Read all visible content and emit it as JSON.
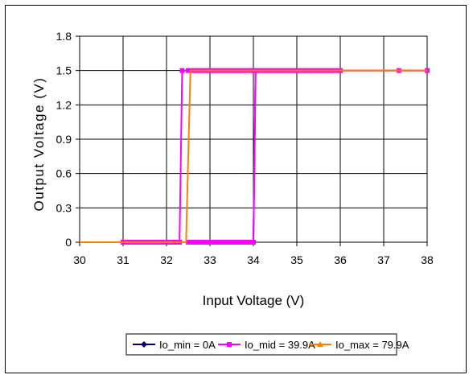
{
  "chart_data": {
    "type": "line",
    "title": "",
    "xlabel": "Input Voltage (V)",
    "ylabel": "Output Voltage (V)",
    "xlim": [
      30,
      38
    ],
    "ylim": [
      0,
      1.8
    ],
    "x_ticks": [
      "30",
      "31",
      "32",
      "33",
      "34",
      "35",
      "36",
      "37",
      "38"
    ],
    "y_ticks": [
      "0",
      "0.3",
      "0.6",
      "0.9",
      "1.2",
      "1.5",
      "1.8"
    ],
    "grid": true,
    "legend_position": "bottom",
    "series": [
      {
        "name": "Io_min = 0A",
        "color": "#000080",
        "marker": "diamond",
        "points": [
          [
            30,
            0
          ],
          [
            34.0,
            0
          ],
          [
            34.05,
            1.5
          ],
          [
            38,
            1.5
          ]
        ]
      },
      {
        "name": "Io_mid = 39.9A",
        "color": "#FF00FF",
        "marker": "square",
        "points": [
          [
            31,
            0
          ],
          [
            31.1,
            0
          ],
          [
            31.2,
            0
          ],
          [
            31.3,
            0
          ],
          [
            31.4,
            0
          ],
          [
            31.5,
            0
          ],
          [
            31.6,
            0
          ],
          [
            31.7,
            0
          ],
          [
            31.8,
            0
          ],
          [
            31.9,
            0
          ],
          [
            32.0,
            0
          ],
          [
            32.1,
            0
          ],
          [
            32.2,
            0
          ],
          [
            32.3,
            0
          ],
          [
            32.36,
            1.5
          ],
          [
            32.5,
            1.5
          ],
          [
            32.6,
            1.5
          ],
          [
            32.7,
            1.5
          ],
          [
            32.8,
            1.5
          ],
          [
            32.9,
            1.5
          ],
          [
            33.0,
            1.5
          ],
          [
            33.1,
            1.5
          ],
          [
            33.2,
            1.5
          ],
          [
            33.3,
            1.5
          ],
          [
            33.4,
            1.5
          ],
          [
            33.5,
            1.5
          ],
          [
            33.6,
            1.5
          ],
          [
            33.7,
            1.5
          ],
          [
            33.8,
            1.5
          ],
          [
            33.9,
            1.5
          ],
          [
            34.0,
            1.5
          ],
          [
            34.1,
            1.5
          ],
          [
            34.2,
            1.5
          ],
          [
            34.3,
            1.5
          ],
          [
            34.4,
            1.5
          ],
          [
            34.5,
            1.5
          ],
          [
            34.6,
            1.5
          ],
          [
            34.7,
            1.5
          ],
          [
            34.8,
            1.5
          ],
          [
            34.9,
            1.5
          ],
          [
            35.0,
            1.5
          ],
          [
            35.1,
            1.5
          ],
          [
            35.2,
            1.5
          ],
          [
            35.3,
            1.5
          ],
          [
            35.4,
            1.5
          ],
          [
            35.5,
            1.5
          ],
          [
            35.6,
            1.5
          ],
          [
            35.7,
            1.5
          ],
          [
            35.8,
            1.5
          ],
          [
            35.9,
            1.5
          ],
          [
            36.0,
            1.5
          ],
          [
            37.35,
            1.5
          ],
          [
            38.0,
            1.5
          ]
        ]
      },
      {
        "name": "Io_max = 79.9A",
        "color": "#FF8000",
        "marker": "triangle",
        "points": [
          [
            30,
            0
          ],
          [
            32.45,
            0
          ],
          [
            32.55,
            1.5
          ],
          [
            38,
            1.5
          ]
        ]
      }
    ],
    "extra_lines": [
      {
        "color": "#FF00FF",
        "points": [
          [
            32.45,
            0
          ],
          [
            33.0,
            0
          ],
          [
            33.5,
            0
          ],
          [
            34.0,
            0
          ],
          [
            34.05,
            1.5
          ]
        ]
      }
    ],
    "extra_markers": [
      {
        "color": "#FF00FF",
        "marker": "square",
        "points": [
          [
            32.5,
            0
          ],
          [
            32.6,
            0
          ],
          [
            32.7,
            0
          ],
          [
            32.8,
            0
          ],
          [
            32.9,
            0
          ],
          [
            33.0,
            0
          ],
          [
            33.1,
            0
          ],
          [
            33.2,
            0
          ],
          [
            33.3,
            0
          ],
          [
            33.4,
            0
          ],
          [
            33.5,
            0
          ],
          [
            33.6,
            0
          ],
          [
            33.7,
            0
          ],
          [
            33.8,
            0
          ],
          [
            33.9,
            0
          ],
          [
            34.0,
            0
          ]
        ]
      }
    ]
  }
}
